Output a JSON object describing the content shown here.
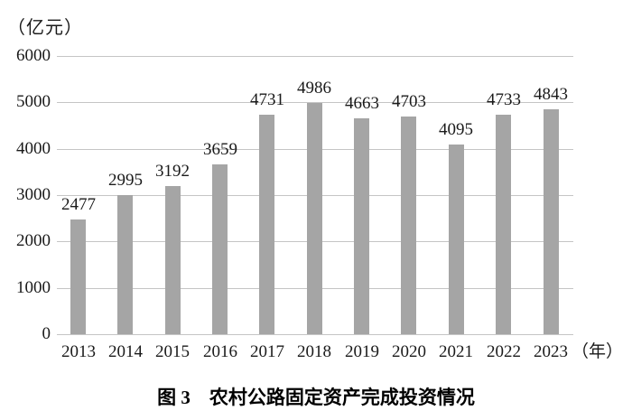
{
  "chart_data": {
    "type": "bar",
    "title": "图 3　农村公路固定资产完成投资情况",
    "y_unit_label": "（亿元）",
    "x_unit_label": "（年）",
    "categories": [
      "2013",
      "2014",
      "2015",
      "2016",
      "2017",
      "2018",
      "2019",
      "2020",
      "2021",
      "2022",
      "2023"
    ],
    "values": [
      2477,
      2995,
      3192,
      3659,
      4731,
      4986,
      4663,
      4703,
      4095,
      4733,
      4843
    ],
    "y_ticks": [
      0,
      1000,
      2000,
      3000,
      4000,
      5000,
      6000
    ],
    "ylim": [
      0,
      6000
    ],
    "xlabel": "",
    "ylabel": "",
    "grid": true,
    "legend": false,
    "bar_color": "#a5a5a5",
    "gridline_color": "#c5c5c5"
  }
}
